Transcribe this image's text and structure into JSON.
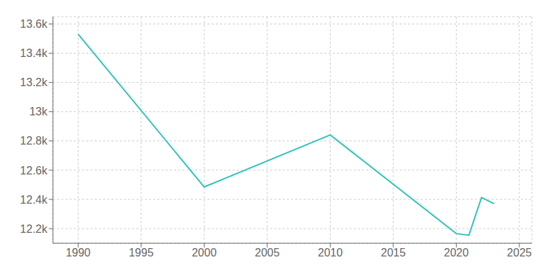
{
  "chart_data": {
    "type": "line",
    "x": [
      1990,
      2000,
      2010,
      2020,
      2021,
      2022,
      2023
    ],
    "values": [
      13531,
      12485,
      12841,
      12166,
      12155,
      12413,
      12370
    ],
    "color": "#2ec4b6",
    "xlim": [
      1988,
      2026
    ],
    "ylim": [
      12100,
      13650
    ],
    "xticks": [
      1990,
      1995,
      2000,
      2005,
      2010,
      2015,
      2020,
      2025
    ],
    "yticks": [
      {
        "value": 12200,
        "label": "12.2k"
      },
      {
        "value": 12400,
        "label": "12.4k"
      },
      {
        "value": 12600,
        "label": "12.6k"
      },
      {
        "value": 12800,
        "label": "12.8k"
      },
      {
        "value": 13000,
        "label": "13k"
      },
      {
        "value": 13200,
        "label": "13.2k"
      },
      {
        "value": 13400,
        "label": "13.4k"
      },
      {
        "value": 13600,
        "label": "13.6k"
      }
    ],
    "grid": true
  }
}
